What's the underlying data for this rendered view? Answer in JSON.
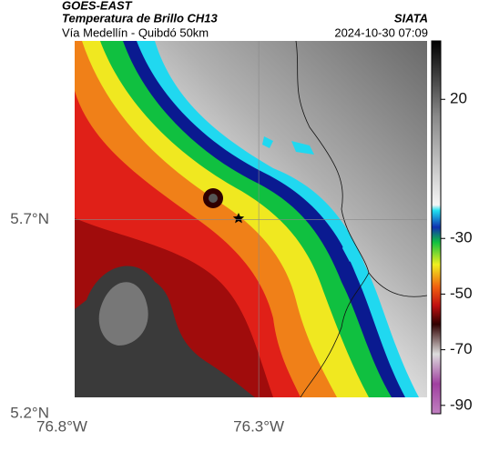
{
  "header": {
    "satellite": "GOES-EAST",
    "title": "Temperatura de Brillo CH13",
    "source": "SIATA",
    "subtitle": "Vía Medellín - Quibdó 50km",
    "timestamp": "2024-10-30 07:09"
  },
  "map": {
    "lonlim": [
      -76.8,
      -75.87
    ],
    "latlim": [
      5.2,
      6.16
    ],
    "lonticks": [
      {
        "value": -76.8,
        "label": "76.8°W"
      },
      {
        "value": -76.3,
        "label": "76.3°W"
      }
    ],
    "latticks": [
      {
        "value": 5.2,
        "label": "5.2°N"
      },
      {
        "value": 5.7,
        "label": "5.7°N"
      }
    ],
    "grid": true,
    "colorbar": {
      "clim": [
        -93,
        41
      ],
      "ticks": [
        20,
        -30,
        -50,
        -70,
        -90
      ]
    }
  }
}
